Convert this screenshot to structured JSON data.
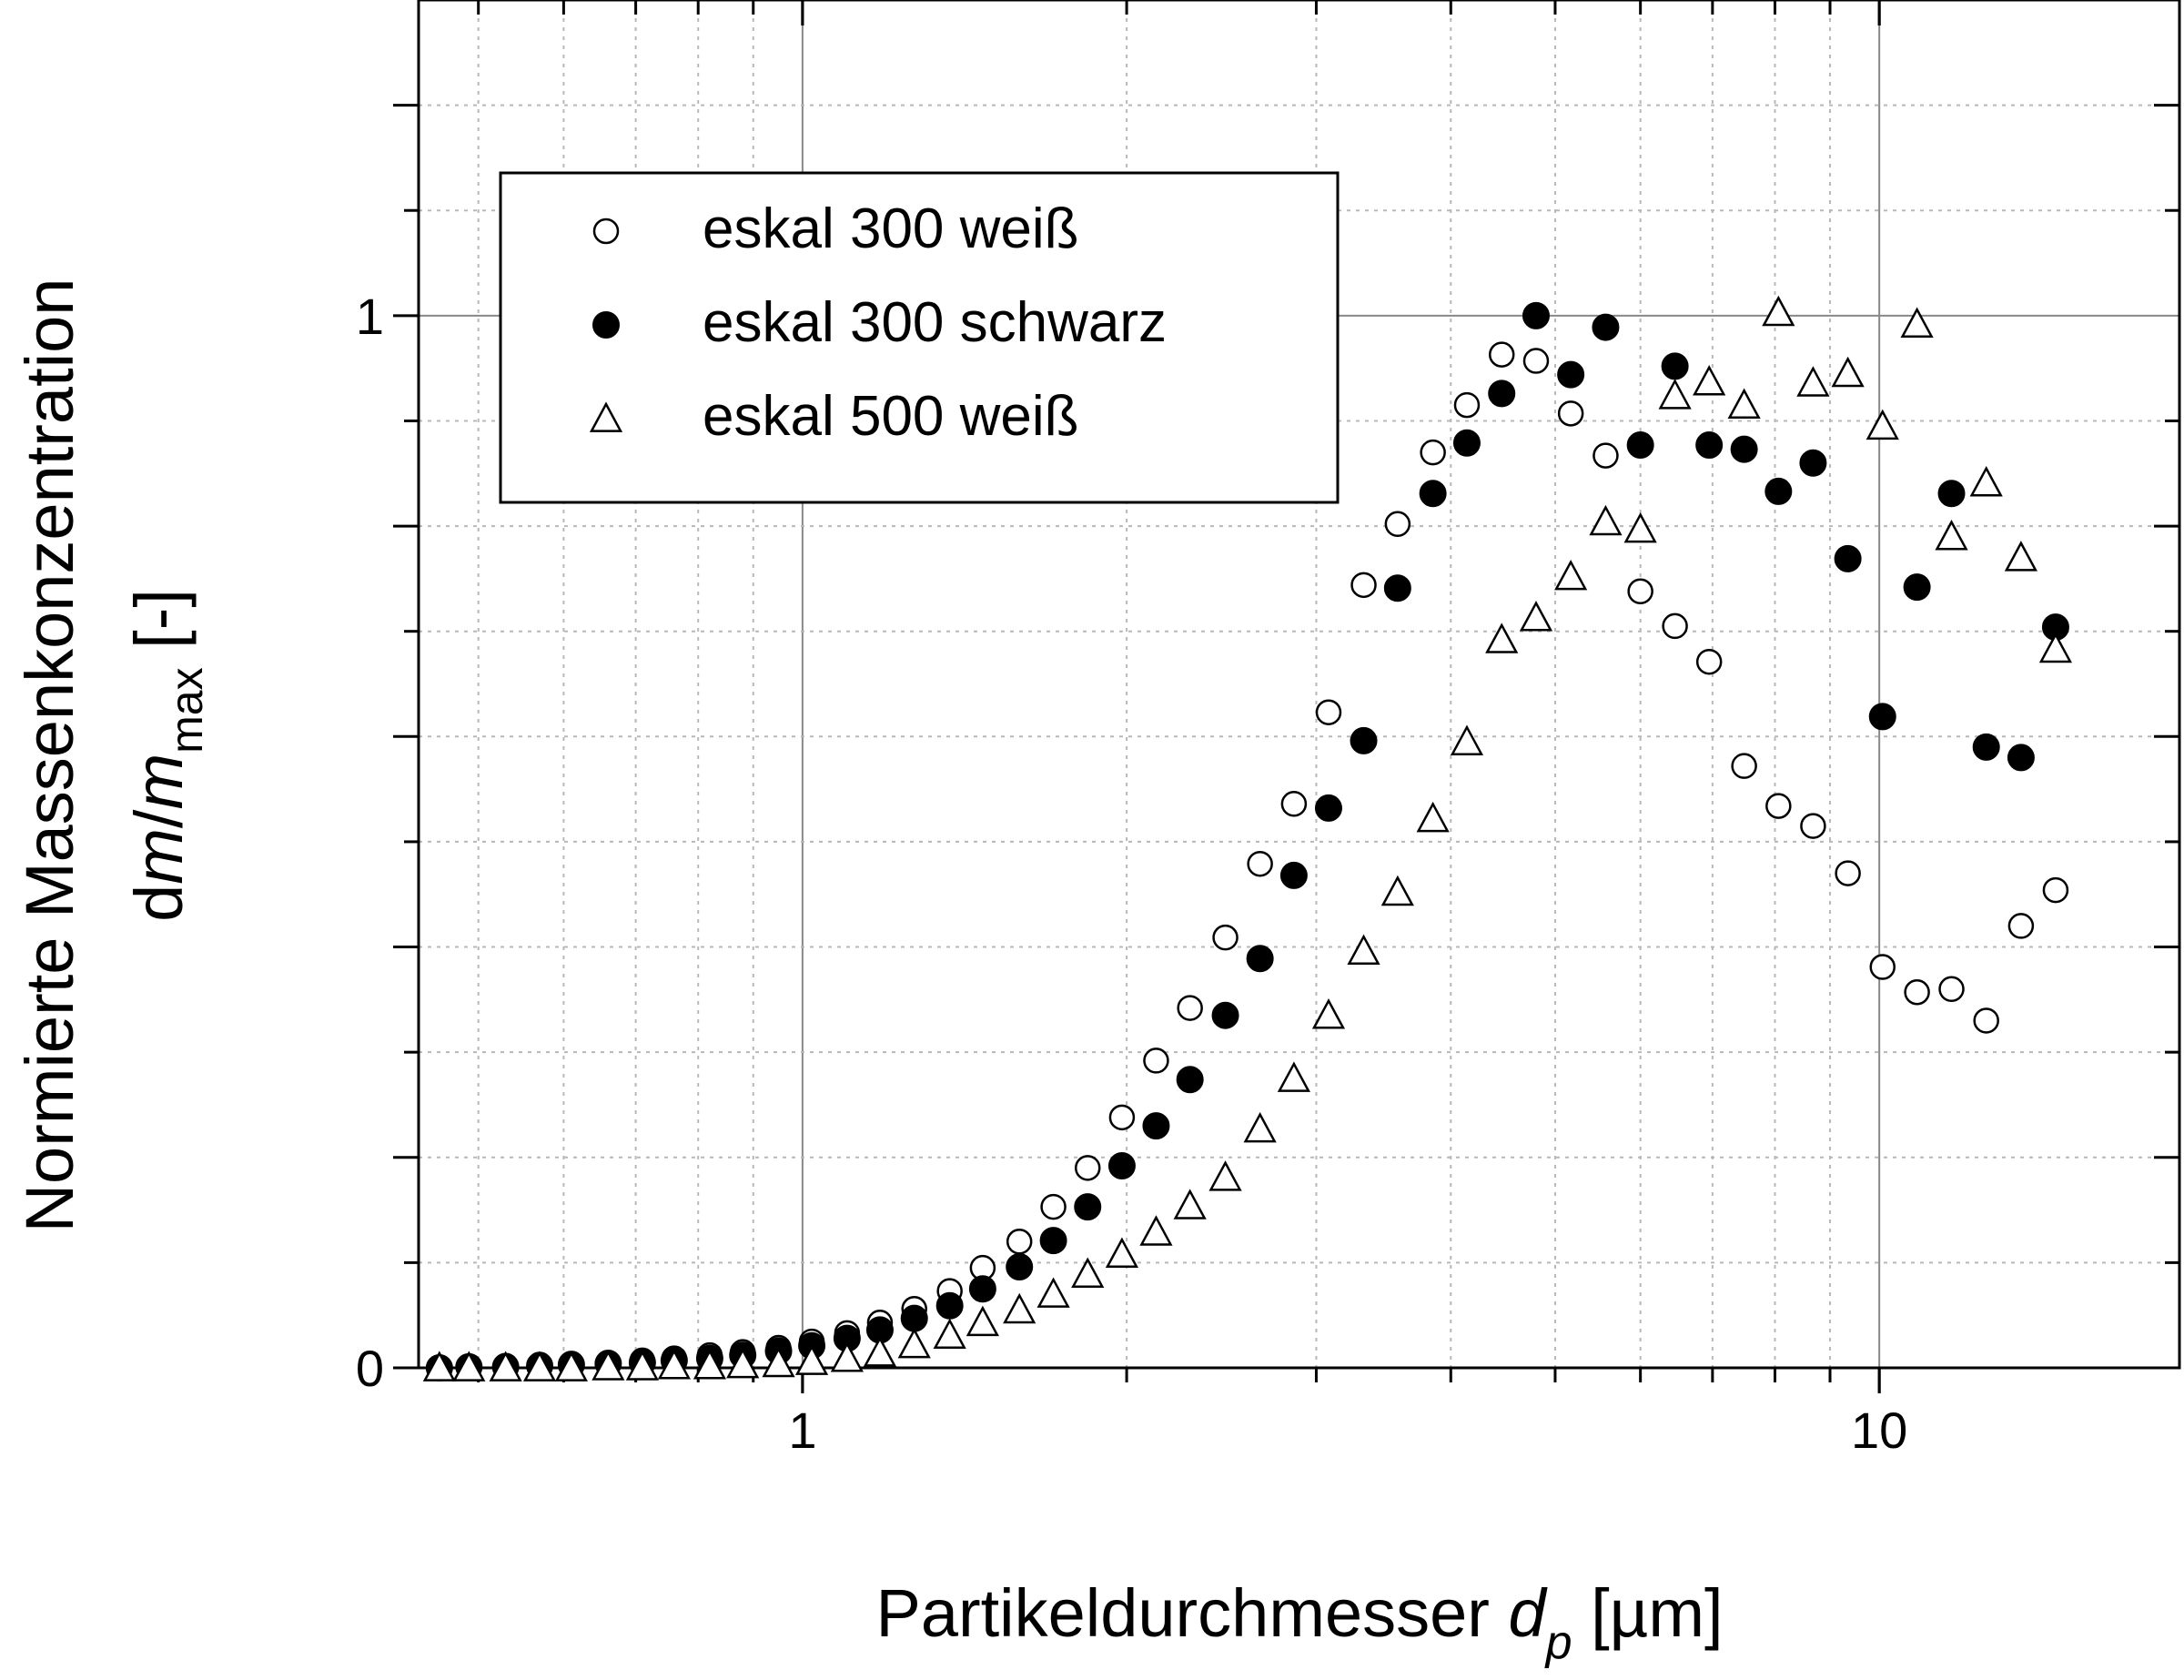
{
  "chart_data": {
    "type": "scatter",
    "x_scale": "log",
    "xlim": [
      0.44,
      19
    ],
    "ylim": [
      0,
      1.3
    ],
    "x_ticks": [
      {
        "value": 1,
        "label": "1"
      },
      {
        "value": 10,
        "label": "10"
      }
    ],
    "y_ticks": [
      {
        "value": 0,
        "label": "0"
      },
      {
        "value": 1,
        "label": "1"
      }
    ],
    "grid": true,
    "legend_position": "top-left",
    "xlabel": {
      "main": "Partikeldurchmesser ",
      "var": "d",
      "sub": "p",
      "unit": " [µm]"
    },
    "ylabel": {
      "line1": "Normierte Massenkonzentration",
      "line2_pre": "d",
      "line2_m": "m",
      "line2_slash": "/",
      "line2_m2": "m",
      "line2_sub": "max",
      "line2_post": " [-]"
    },
    "series": [
      {
        "name": "eskal 300 weiß",
        "marker": "circle-open",
        "x": [
          0.46,
          0.49,
          0.53,
          0.57,
          0.61,
          0.66,
          0.71,
          0.76,
          0.82,
          0.88,
          0.95,
          1.02,
          1.1,
          1.18,
          1.27,
          1.37,
          1.47,
          1.59,
          1.71,
          1.84,
          1.98,
          2.13,
          2.29,
          2.47,
          2.66,
          2.86,
          3.08,
          3.32,
          3.57,
          3.85,
          4.14,
          4.46,
          4.8,
          5.17,
          5.57,
          6.0,
          6.46,
          6.95,
          7.49,
          8.06,
          8.68,
          9.35,
          10.07,
          10.84,
          11.67,
          12.57,
          13.54,
          14.58
        ],
        "y": [
          0.0,
          0.001,
          0.002,
          0.003,
          0.004,
          0.005,
          0.007,
          0.009,
          0.012,
          0.015,
          0.019,
          0.025,
          0.033,
          0.043,
          0.056,
          0.073,
          0.095,
          0.12,
          0.153,
          0.19,
          0.238,
          0.292,
          0.342,
          0.409,
          0.479,
          0.536,
          0.623,
          0.744,
          0.802,
          0.87,
          0.915,
          0.963,
          0.957,
          0.907,
          0.867,
          0.738,
          0.705,
          0.671,
          0.572,
          0.534,
          0.515,
          0.47,
          0.381,
          0.357,
          0.36,
          0.33,
          0.42,
          0.454
        ]
      },
      {
        "name": "eskal 300 schwarz",
        "marker": "circle-filled",
        "x": [
          0.46,
          0.49,
          0.53,
          0.57,
          0.61,
          0.66,
          0.71,
          0.76,
          0.82,
          0.88,
          0.95,
          1.02,
          1.1,
          1.18,
          1.27,
          1.37,
          1.47,
          1.59,
          1.71,
          1.84,
          1.98,
          2.13,
          2.29,
          2.47,
          2.66,
          2.86,
          3.08,
          3.32,
          3.57,
          3.85,
          4.14,
          4.46,
          4.8,
          5.17,
          5.57,
          6.0,
          6.46,
          6.95,
          7.49,
          8.06,
          8.68,
          9.35,
          10.07,
          10.84,
          11.67,
          12.57,
          13.54,
          14.58
        ],
        "y": [
          0.0,
          0.001,
          0.001,
          0.002,
          0.003,
          0.004,
          0.005,
          0.007,
          0.009,
          0.012,
          0.016,
          0.021,
          0.028,
          0.036,
          0.047,
          0.059,
          0.075,
          0.096,
          0.121,
          0.153,
          0.192,
          0.23,
          0.274,
          0.335,
          0.389,
          0.468,
          0.532,
          0.596,
          0.741,
          0.831,
          0.879,
          0.926,
          1.0,
          0.944,
          0.989,
          0.877,
          0.952,
          0.877,
          0.873,
          0.833,
          0.86,
          0.769,
          0.619,
          0.742,
          0.831,
          0.59,
          0.58,
          0.704
        ]
      },
      {
        "name": "eskal 500 weiß",
        "marker": "triangle-open",
        "x": [
          0.46,
          0.49,
          0.53,
          0.57,
          0.61,
          0.66,
          0.71,
          0.76,
          0.82,
          0.88,
          0.95,
          1.02,
          1.1,
          1.18,
          1.27,
          1.37,
          1.47,
          1.59,
          1.71,
          1.84,
          1.98,
          2.13,
          2.29,
          2.47,
          2.66,
          2.86,
          3.08,
          3.32,
          3.57,
          3.85,
          4.14,
          4.46,
          4.8,
          5.17,
          5.57,
          6.0,
          6.46,
          6.95,
          7.49,
          8.06,
          8.68,
          9.35,
          10.07,
          10.84,
          11.67,
          12.57,
          13.54,
          14.58
        ],
        "y": [
          0.0,
          0.0,
          0.0,
          0.0,
          0.0,
          0.001,
          0.001,
          0.002,
          0.002,
          0.003,
          0.004,
          0.006,
          0.009,
          0.014,
          0.022,
          0.031,
          0.043,
          0.055,
          0.07,
          0.089,
          0.108,
          0.129,
          0.154,
          0.181,
          0.227,
          0.275,
          0.335,
          0.396,
          0.452,
          0.522,
          0.595,
          0.692,
          0.713,
          0.752,
          0.804,
          0.797,
          0.924,
          0.937,
          0.915,
          1.003,
          0.936,
          0.945,
          0.895,
          0.992,
          0.79,
          0.841,
          0.77,
          0.683
        ]
      }
    ]
  }
}
